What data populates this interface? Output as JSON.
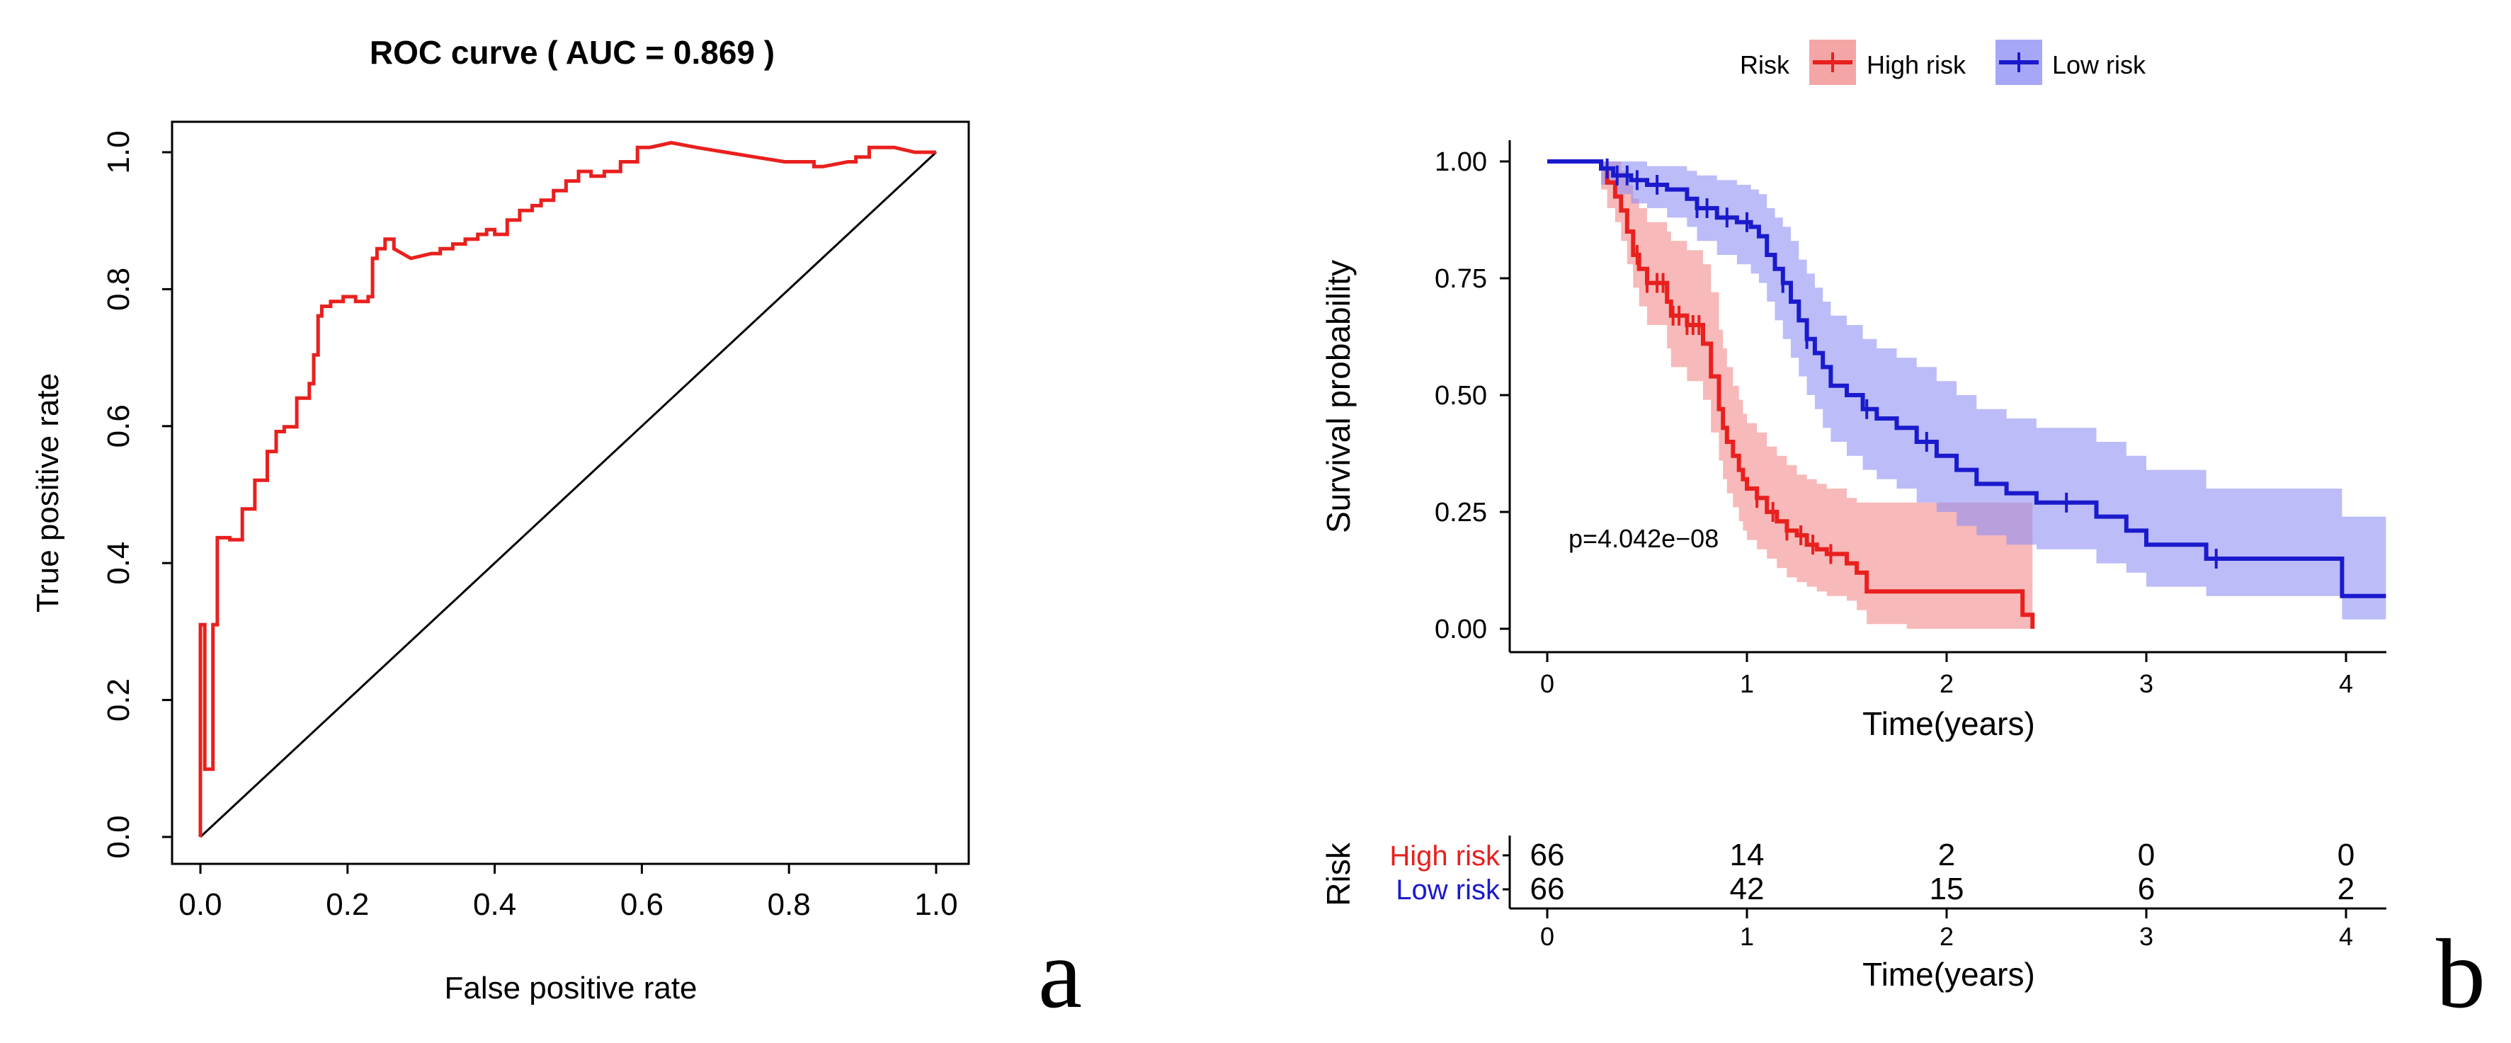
{
  "chart_data": [
    {
      "type": "line",
      "panel_label": "a",
      "title": "ROC curve ( AUC =  0.869 )",
      "xlabel": "False positive rate",
      "ylabel": "True positive rate",
      "xlim": [
        0,
        1
      ],
      "ylim": [
        0,
        1
      ],
      "xticks": [
        "0.0",
        "0.2",
        "0.4",
        "0.6",
        "0.8",
        "1.0"
      ],
      "yticks": [
        "0.0",
        "0.2",
        "0.4",
        "0.6",
        "0.8",
        "1.0"
      ],
      "diagonal": true,
      "series": [
        {
          "name": "ROC",
          "color": "#e8201e",
          "x": [
            0.0,
            0.0,
            0.0,
            0.0,
            0.006,
            0.006,
            0.017,
            0.017,
            0.023,
            0.023,
            0.028,
            0.028,
            0.04,
            0.04,
            0.057,
            0.057,
            0.074,
            0.074,
            0.091,
            0.091,
            0.103,
            0.103,
            0.114,
            0.114,
            0.131,
            0.131,
            0.148,
            0.148,
            0.154,
            0.154,
            0.16,
            0.16,
            0.165,
            0.165,
            0.177,
            0.177,
            0.194,
            0.194,
            0.211,
            0.211,
            0.228,
            0.228,
            0.234,
            0.234,
            0.24,
            0.24,
            0.251,
            0.251,
            0.263,
            0.263,
            0.286,
            0.314,
            0.326,
            0.326,
            0.343,
            0.343,
            0.36,
            0.36,
            0.377,
            0.377,
            0.389,
            0.389,
            0.4,
            0.4,
            0.417,
            0.417,
            0.434,
            0.434,
            0.451,
            0.451,
            0.463,
            0.463,
            0.48,
            0.48,
            0.497,
            0.497,
            0.514,
            0.514,
            0.531,
            0.531,
            0.549,
            0.549,
            0.571,
            0.571,
            0.594,
            0.594,
            0.611,
            0.64,
            0.674,
            0.714,
            0.754,
            0.794,
            0.829,
            0.834,
            0.834,
            0.846,
            0.88,
            0.891,
            0.891,
            0.909,
            0.909,
            0.943,
            0.971,
            1.0
          ],
          "y": [
            0.0,
            0.099,
            0.155,
            0.31,
            0.31,
            0.099,
            0.099,
            0.31,
            0.31,
            0.437,
            0.437,
            0.437,
            0.437,
            0.434,
            0.434,
            0.479,
            0.479,
            0.521,
            0.521,
            0.563,
            0.563,
            0.592,
            0.592,
            0.599,
            0.599,
            0.641,
            0.641,
            0.662,
            0.662,
            0.704,
            0.704,
            0.761,
            0.761,
            0.775,
            0.775,
            0.782,
            0.782,
            0.789,
            0.789,
            0.782,
            0.782,
            0.789,
            0.789,
            0.845,
            0.845,
            0.859,
            0.859,
            0.873,
            0.873,
            0.859,
            0.845,
            0.852,
            0.852,
            0.859,
            0.859,
            0.866,
            0.866,
            0.873,
            0.873,
            0.88,
            0.88,
            0.887,
            0.887,
            0.88,
            0.88,
            0.901,
            0.901,
            0.915,
            0.915,
            0.922,
            0.922,
            0.93,
            0.93,
            0.944,
            0.944,
            0.958,
            0.958,
            0.972,
            0.972,
            0.965,
            0.965,
            0.972,
            0.972,
            0.986,
            0.986,
            1.007,
            1.007,
            1.014,
            1.007,
            1.0,
            0.993,
            0.986,
            0.986,
            0.986,
            0.979,
            0.979,
            0.986,
            0.986,
            0.993,
            0.993,
            1.007,
            1.007,
            1.0,
            1.0
          ]
        }
      ]
    },
    {
      "type": "line",
      "panel_label": "b",
      "legend_title": "Risk",
      "legend": [
        "High risk",
        "Low risk"
      ],
      "xlabel": "Time(years)",
      "ylabel": "Survival probability",
      "xlim": [
        0,
        4.2
      ],
      "ylim": [
        0,
        1
      ],
      "xticks": [
        "0",
        "1",
        "2",
        "3",
        "4"
      ],
      "yticks": [
        "0.00",
        "0.25",
        "0.50",
        "0.75",
        "1.00"
      ],
      "pvalue": "p=4.042e−08",
      "series": [
        {
          "name": "High risk",
          "color": "#e8201e",
          "band_color": "#f08080",
          "t": [
            0,
            0.27,
            0.3,
            0.34,
            0.37,
            0.4,
            0.43,
            0.46,
            0.5,
            0.6,
            0.62,
            0.7,
            0.78,
            0.82,
            0.86,
            0.88,
            0.9,
            0.93,
            0.96,
            0.98,
            1.0,
            1.05,
            1.1,
            1.15,
            1.2,
            1.25,
            1.3,
            1.35,
            1.4,
            1.5,
            1.55,
            1.6,
            1.8,
            2.0,
            2.2,
            2.38,
            2.43
          ],
          "s": [
            1,
            0.985,
            0.955,
            0.925,
            0.895,
            0.85,
            0.8,
            0.77,
            0.74,
            0.7,
            0.67,
            0.65,
            0.61,
            0.54,
            0.47,
            0.43,
            0.4,
            0.37,
            0.34,
            0.32,
            0.3,
            0.28,
            0.25,
            0.23,
            0.21,
            0.2,
            0.18,
            0.17,
            0.16,
            0.14,
            0.12,
            0.08,
            0.08,
            0.08,
            0.08,
            0.03,
            0.0
          ],
          "lo": [
            1,
            0.94,
            0.9,
            0.87,
            0.83,
            0.78,
            0.73,
            0.69,
            0.65,
            0.6,
            0.56,
            0.53,
            0.49,
            0.42,
            0.36,
            0.32,
            0.29,
            0.26,
            0.23,
            0.21,
            0.19,
            0.17,
            0.15,
            0.13,
            0.11,
            0.1,
            0.09,
            0.08,
            0.07,
            0.06,
            0.04,
            0.01,
            0.0,
            0.0,
            0.0,
            0.0,
            0.0
          ],
          "hi": [
            1,
            1,
            1,
            1,
            0.98,
            0.95,
            0.92,
            0.9,
            0.87,
            0.85,
            0.83,
            0.81,
            0.78,
            0.72,
            0.64,
            0.6,
            0.56,
            0.52,
            0.49,
            0.46,
            0.44,
            0.42,
            0.39,
            0.37,
            0.35,
            0.33,
            0.32,
            0.31,
            0.3,
            0.28,
            0.27,
            0.27,
            0.27,
            0.27,
            0.27,
            0.27,
            0.27
          ],
          "censor_t": [
            0.45,
            0.5,
            0.55,
            0.58,
            0.63,
            0.66,
            0.7,
            0.73,
            0.76,
            1.05,
            1.13,
            1.2,
            1.27,
            1.33,
            1.42
          ],
          "at_risk": [
            "66",
            "14",
            "2",
            "0",
            "0"
          ]
        },
        {
          "name": "Low risk",
          "color": "#1a1acd",
          "band_color": "#8f8ff5",
          "t": [
            0,
            0.27,
            0.33,
            0.42,
            0.5,
            0.6,
            0.7,
            0.75,
            0.85,
            0.95,
            1.02,
            1.06,
            1.1,
            1.14,
            1.18,
            1.22,
            1.26,
            1.3,
            1.34,
            1.38,
            1.42,
            1.5,
            1.58,
            1.65,
            1.75,
            1.85,
            1.95,
            2.05,
            2.15,
            2.3,
            2.45,
            2.55,
            2.75,
            2.9,
            3.0,
            3.1,
            3.3,
            3.5,
            3.8,
            3.98,
            4.2
          ],
          "s": [
            1,
            0.985,
            0.97,
            0.96,
            0.95,
            0.94,
            0.92,
            0.9,
            0.88,
            0.87,
            0.86,
            0.84,
            0.8,
            0.77,
            0.74,
            0.7,
            0.66,
            0.62,
            0.59,
            0.56,
            0.52,
            0.5,
            0.47,
            0.45,
            0.43,
            0.4,
            0.37,
            0.34,
            0.31,
            0.29,
            0.27,
            0.27,
            0.24,
            0.21,
            0.18,
            0.18,
            0.15,
            0.15,
            0.15,
            0.07,
            0.07
          ],
          "lo": [
            1,
            0.95,
            0.93,
            0.91,
            0.9,
            0.88,
            0.86,
            0.83,
            0.8,
            0.78,
            0.76,
            0.74,
            0.7,
            0.66,
            0.62,
            0.58,
            0.54,
            0.5,
            0.47,
            0.43,
            0.4,
            0.37,
            0.34,
            0.32,
            0.3,
            0.27,
            0.25,
            0.22,
            0.2,
            0.18,
            0.17,
            0.17,
            0.14,
            0.12,
            0.09,
            0.09,
            0.07,
            0.07,
            0.07,
            0.02,
            0.02
          ],
          "hi": [
            1,
            1,
            1,
            1,
            0.99,
            0.99,
            0.98,
            0.97,
            0.96,
            0.95,
            0.94,
            0.93,
            0.9,
            0.88,
            0.86,
            0.83,
            0.79,
            0.76,
            0.73,
            0.7,
            0.67,
            0.65,
            0.62,
            0.6,
            0.58,
            0.56,
            0.53,
            0.5,
            0.47,
            0.45,
            0.43,
            0.43,
            0.4,
            0.37,
            0.34,
            0.34,
            0.3,
            0.3,
            0.3,
            0.24,
            0.24
          ],
          "censor_t": [
            0.3,
            0.35,
            0.4,
            0.45,
            0.55,
            0.75,
            0.8,
            0.9,
            1.0,
            1.18,
            1.3,
            1.6,
            1.9,
            2.6,
            3.35
          ],
          "at_risk": [
            "66",
            "42",
            "15",
            "6",
            "2"
          ]
        }
      ],
      "risk_table": {
        "title": "Risk",
        "row_labels": [
          "High risk",
          "Low risk"
        ],
        "xlabel": "Time(years)",
        "xticks": [
          "0",
          "1",
          "2",
          "3",
          "4"
        ]
      }
    }
  ]
}
